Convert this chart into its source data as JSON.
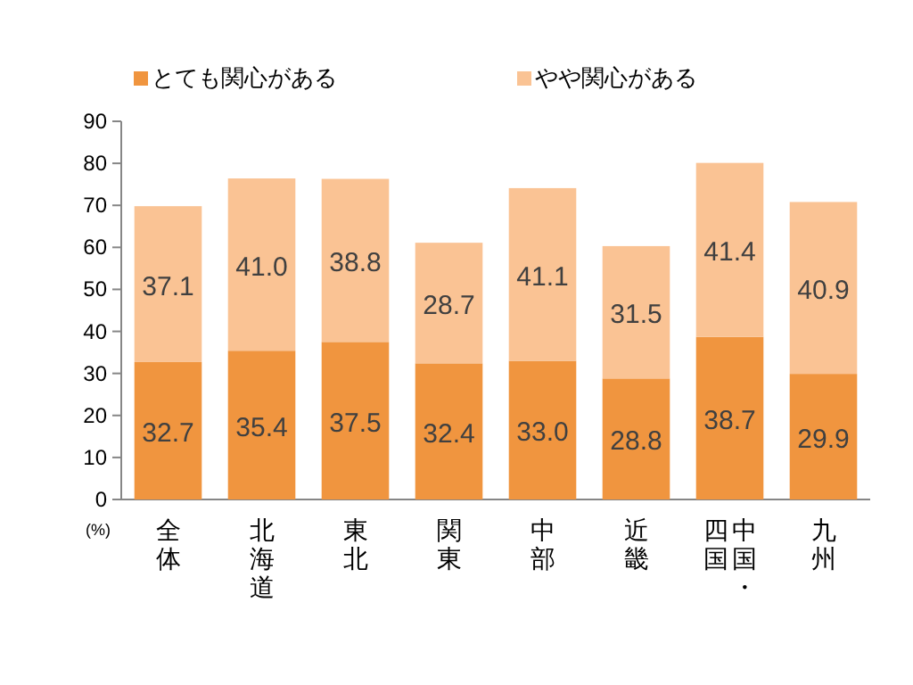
{
  "chart_data": {
    "type": "bar",
    "stacked": true,
    "ylabel": "(%)",
    "categories": [
      "全体",
      "北海道",
      "東北",
      "関東",
      "中部",
      "近畿",
      "中国・四国",
      "九州"
    ],
    "series": [
      {
        "name": "とても関心がある",
        "color": "#f0953f",
        "values": [
          32.7,
          35.4,
          37.5,
          32.4,
          33.0,
          28.8,
          38.7,
          29.9
        ],
        "value_labels": [
          "32.7",
          "35.4",
          "37.5",
          "32.4",
          "33.0",
          "28.8",
          "38.7",
          "29.9"
        ]
      },
      {
        "name": "やや関心がある",
        "color": "#fac394",
        "values": [
          37.1,
          41.0,
          38.8,
          28.7,
          41.1,
          31.5,
          41.4,
          40.9
        ],
        "value_labels": [
          "37.1",
          "41.0",
          "38.8",
          "28.7",
          "41.1",
          "31.5",
          "41.4",
          "40.9"
        ]
      }
    ],
    "ylim": [
      0,
      90
    ],
    "yticks": [
      0,
      10,
      20,
      30,
      40,
      50,
      60,
      70,
      80,
      90
    ],
    "legend": "top",
    "grid": false
  }
}
